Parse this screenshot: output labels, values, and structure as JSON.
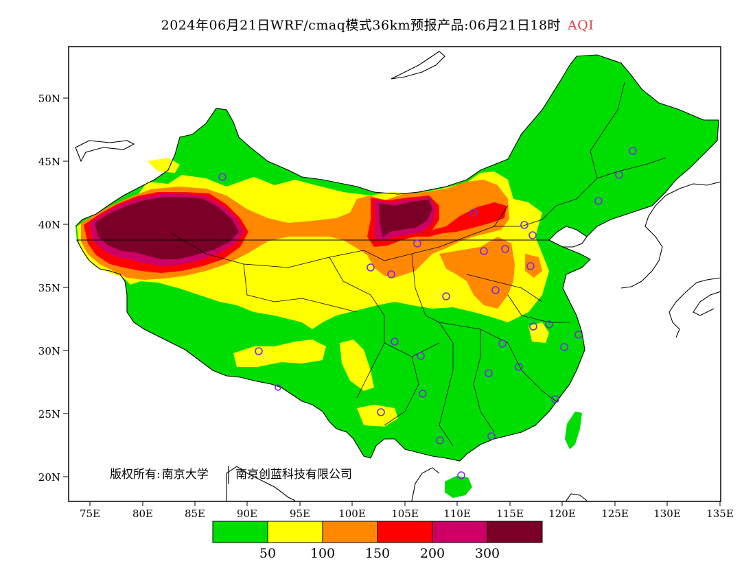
{
  "title": {
    "main": "2024年06月21日WRF/cmaq模式36km预报产品:06月21日18时",
    "variable": "AQI"
  },
  "axes": {
    "lat_ticks": [
      "50N",
      "45N",
      "40N",
      "35N",
      "30N",
      "25N",
      "20N"
    ],
    "lon_ticks": [
      "75E",
      "80E",
      "85E",
      "90E",
      "95E",
      "100E",
      "105E",
      "110E",
      "115E",
      "120E",
      "125E",
      "130E",
      "135E"
    ]
  },
  "copyright": {
    "prefix": "版权所有:",
    "org1": "南京大学",
    "org2": "南京创蓝科技有限公司"
  },
  "legend": {
    "colors": [
      "#00dd00",
      "#ffff00",
      "#ff8800",
      "#ff0000",
      "#cc0066",
      "#7a0026"
    ],
    "labels": [
      "50",
      "100",
      "150",
      "200",
      "300"
    ]
  },
  "station_color": "#7a2be0"
}
